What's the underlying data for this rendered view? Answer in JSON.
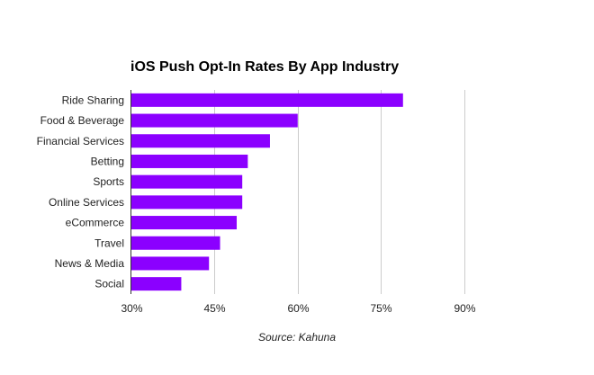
{
  "chart_data": {
    "type": "bar",
    "orientation": "horizontal",
    "title": "iOS Push Opt-In Rates By App Industry",
    "categories": [
      "Ride Sharing",
      "Food & Beverage",
      "Financial Services",
      "Betting",
      "Sports",
      "Online Services",
      "eCommerce",
      "Travel",
      "News & Media",
      "Social"
    ],
    "values": [
      79,
      60,
      55,
      51,
      50,
      50,
      49,
      46,
      44,
      39
    ],
    "value_unit": "%",
    "xlim": [
      30,
      93
    ],
    "x_ticks": [
      30,
      45,
      60,
      75,
      90
    ],
    "x_tick_labels": [
      "30%",
      "45%",
      "60%",
      "75%",
      "90%"
    ],
    "xlabel": "",
    "ylabel": "",
    "grid": true,
    "legend": "none",
    "bar_color": "#8b00ff",
    "grid_color": "#cccccc",
    "axis_color": "#333333",
    "source": "Source: Kahuna"
  }
}
